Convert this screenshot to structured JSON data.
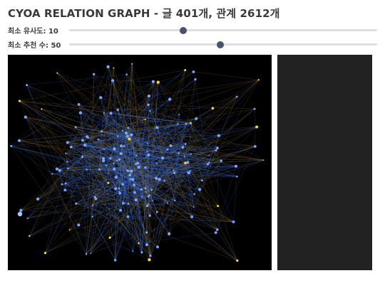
{
  "header": {
    "title": "CYOA RELATION GRAPH - 글 401개, 관계 2612개"
  },
  "controls": {
    "min_similarity": {
      "label": "최소 유사도: 10",
      "value": 10,
      "fraction": 0.37
    },
    "min_recommend": {
      "label": "최소 추천 수: 50",
      "value": 50,
      "fraction": 0.49
    }
  },
  "graph": {
    "node_color_primary": "#7aa6ff",
    "node_color_secondary": "#ffd23a",
    "edge_color_primary": "#3d6fd6",
    "edge_color_secondary": "#b07a18",
    "background": "#000000"
  },
  "side_panel": {
    "background": "#222222"
  }
}
